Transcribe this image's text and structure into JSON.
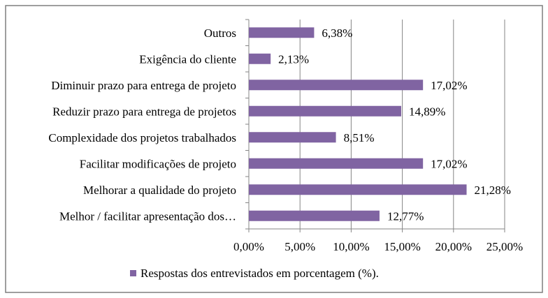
{
  "chart_data": {
    "type": "bar",
    "orientation": "horizontal",
    "categories": [
      "Outros",
      "Exigência do cliente",
      "Diminuir prazo para entrega de projeto",
      "Reduzir prazo para entrega de projetos",
      "Complexidade dos projetos trabalhados",
      "Facilitar modificações de projeto",
      "Melhorar a qualidade do projeto",
      "Melhor / facilitar apresentação dos…"
    ],
    "series": [
      {
        "name": "Respostas dos entrevistados em porcentagem (%).",
        "values": [
          6.38,
          2.13,
          17.02,
          14.89,
          8.51,
          17.02,
          21.28,
          12.77
        ],
        "labels": [
          "6,38%",
          "2,13%",
          "17,02%",
          "14,89%",
          "8,51%",
          "17,02%",
          "21,28%",
          "12,77%"
        ],
        "color": "#8064a2"
      }
    ],
    "xlim": [
      0,
      25
    ],
    "ticks": [
      0,
      5,
      10,
      15,
      20,
      25
    ],
    "tick_labels": [
      "0,00%",
      "5,00%",
      "10,00%",
      "15,00%",
      "20,00%",
      "25,00%"
    ],
    "grid": true,
    "legend_position": "bottom"
  }
}
